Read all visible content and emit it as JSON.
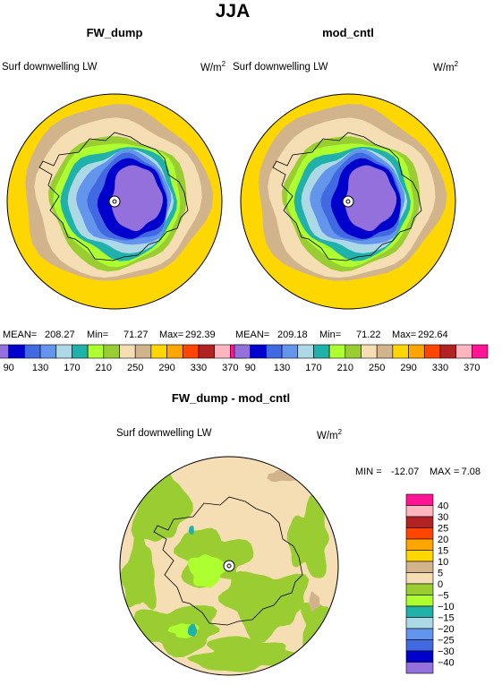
{
  "figure": {
    "season": "JJA"
  },
  "panels": [
    {
      "title": "FW_dump",
      "variable": "Surf downwelling LW",
      "units_base": "W/m",
      "units_exp": "2",
      "stats": {
        "mean_label": "MEAN=",
        "mean": "208.27",
        "min_label": "Min=",
        "min": "71.27",
        "max_label": "Max=",
        "max": "292.39"
      }
    },
    {
      "title": "mod_cntl",
      "variable": "Surf downwelling LW",
      "units_base": "W/m",
      "units_exp": "2",
      "stats": {
        "mean_label": "MEAN=",
        "mean": "209.18",
        "min_label": "Min=",
        "min": "71.22",
        "max_label": "Max=",
        "max": "292.64"
      }
    }
  ],
  "diff_panel": {
    "title": "FW_dump - mod_cntl",
    "variable": "Surf downwelling LW",
    "units_base": "W/m",
    "units_exp": "2",
    "stats": {
      "min_label": "MIN =",
      "min": "-12.07",
      "max_label": "MAX =",
      "max": "7.08"
    }
  },
  "chart_data": [
    {
      "type": "heatmap",
      "projection": "polar-stereographic",
      "title": "FW_dump",
      "subtitle": "Surf downwelling LW",
      "units": "W/m2",
      "mean": 208.27,
      "min": 71.27,
      "max": 292.39,
      "colorbar": {
        "orientation": "horizontal",
        "levels": [
          90,
          110,
          130,
          150,
          170,
          190,
          210,
          230,
          250,
          270,
          290,
          310,
          330,
          350,
          370
        ],
        "tick_labels": [
          "90",
          "130",
          "170",
          "210",
          "250",
          "290",
          "330",
          "370"
        ],
        "colors": [
          "#9370db",
          "#0000cd",
          "#4169e1",
          "#6495ed",
          "#add8e6",
          "#20b2aa",
          "#adff2f",
          "#9acd32",
          "#f5deb3",
          "#d2b48c",
          "#ffd700",
          "#ffa500",
          "#ff4500",
          "#b22222",
          "#ffb6c1",
          "#ff1493"
        ]
      }
    },
    {
      "type": "heatmap",
      "projection": "polar-stereographic",
      "title": "mod_cntl",
      "subtitle": "Surf downwelling LW",
      "units": "W/m2",
      "mean": 209.18,
      "min": 71.22,
      "max": 292.64,
      "colorbar": {
        "orientation": "horizontal",
        "levels": [
          90,
          110,
          130,
          150,
          170,
          190,
          210,
          230,
          250,
          270,
          290,
          310,
          330,
          350,
          370
        ],
        "tick_labels": [
          "90",
          "130",
          "170",
          "210",
          "250",
          "290",
          "330",
          "370"
        ],
        "colors": [
          "#9370db",
          "#0000cd",
          "#4169e1",
          "#6495ed",
          "#add8e6",
          "#20b2aa",
          "#adff2f",
          "#9acd32",
          "#f5deb3",
          "#d2b48c",
          "#ffd700",
          "#ffa500",
          "#ff4500",
          "#b22222",
          "#ffb6c1",
          "#ff1493"
        ]
      }
    },
    {
      "type": "heatmap",
      "projection": "polar-stereographic",
      "title": "FW_dump - mod_cntl",
      "subtitle": "Surf downwelling LW",
      "units": "W/m2",
      "min": -12.07,
      "max": 7.08,
      "colorbar": {
        "orientation": "vertical",
        "levels": [
          -40,
          -30,
          -25,
          -20,
          -15,
          -10,
          -5,
          0,
          5,
          10,
          15,
          20,
          25,
          30,
          40
        ],
        "tick_labels": [
          "40",
          "30",
          "25",
          "20",
          "15",
          "10",
          "5",
          "0",
          "−5",
          "−10",
          "−15",
          "−20",
          "−25",
          "−30",
          "−40"
        ],
        "colors": [
          "#ff1493",
          "#ffb6c1",
          "#b22222",
          "#ff4500",
          "#ffa500",
          "#ffd700",
          "#d2b48c",
          "#f5deb3",
          "#9acd32",
          "#adff2f",
          "#20b2aa",
          "#add8e6",
          "#6495ed",
          "#4169e1",
          "#0000cd",
          "#9370db"
        ]
      }
    }
  ]
}
